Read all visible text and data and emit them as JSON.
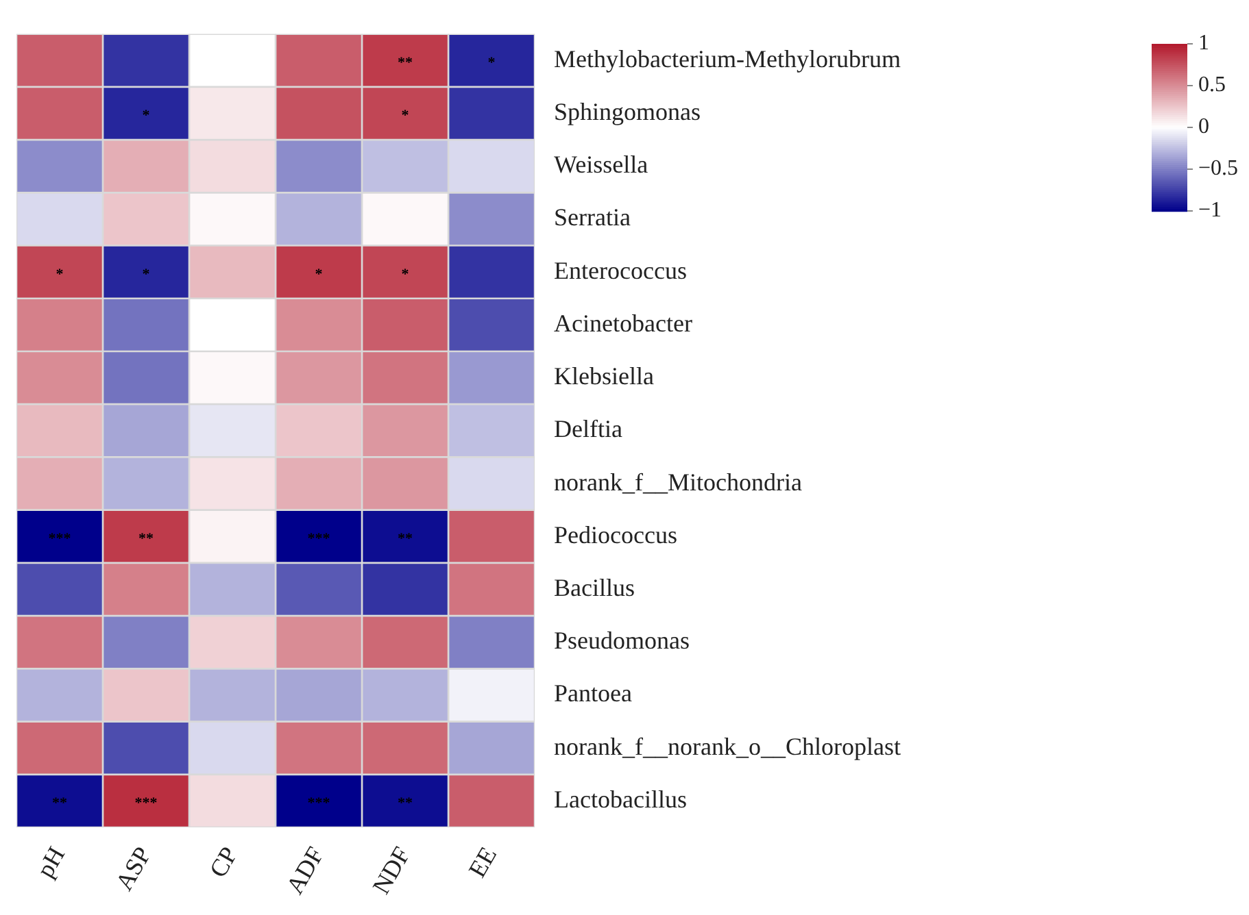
{
  "chart_data": {
    "type": "heatmap",
    "categories": [
      "pH",
      "ASP",
      "CP",
      "ADF",
      "NDF",
      "EE"
    ],
    "y_categories": [
      "Methylobacterium-Methylorubrum",
      "Sphingomonas",
      "Weissella",
      "Serratia",
      "Enterococcus",
      "Acinetobacter",
      "Klebsiella",
      "Delftia",
      "norank_f__Mitochondria",
      "Pediococcus",
      "Bacillus",
      "Pseudomonas",
      "Pantoea",
      "norank_f__norank_o__Chloroplast",
      "Lactobacillus"
    ],
    "cells": [
      [
        0.7,
        -0.8,
        0,
        0.7,
        0.85,
        -0.85
      ],
      [
        0.7,
        -0.85,
        0.1,
        0.75,
        0.8,
        -0.8
      ],
      [
        -0.45,
        0.35,
        0.15,
        -0.45,
        -0.25,
        -0.15
      ],
      [
        -0.15,
        0.25,
        0.03,
        -0.3,
        0.03,
        -0.45
      ],
      [
        0.8,
        -0.85,
        0.3,
        0.85,
        0.8,
        -0.8
      ],
      [
        0.55,
        -0.55,
        0,
        0.5,
        0.7,
        -0.7
      ],
      [
        0.5,
        -0.55,
        0.03,
        0.45,
        0.6,
        -0.4
      ],
      [
        0.3,
        -0.35,
        -0.1,
        0.25,
        0.45,
        -0.25
      ],
      [
        0.35,
        -0.3,
        0.12,
        0.35,
        0.45,
        -0.15
      ],
      [
        -1,
        0.85,
        0.05,
        -1,
        -0.95,
        0.7
      ],
      [
        -0.7,
        0.55,
        -0.3,
        -0.65,
        -0.8,
        0.6
      ],
      [
        0.6,
        -0.5,
        0.2,
        0.5,
        0.65,
        -0.5
      ],
      [
        -0.3,
        0.25,
        -0.3,
        -0.35,
        -0.3,
        -0.05
      ],
      [
        0.65,
        -0.7,
        -0.15,
        0.6,
        0.65,
        -0.35
      ],
      [
        -0.95,
        0.9,
        0.15,
        -1,
        -0.95,
        0.7
      ]
    ],
    "cell_labels": [
      [
        null,
        null,
        null,
        null,
        "**",
        "*"
      ],
      [
        null,
        "*",
        null,
        null,
        "*",
        null
      ],
      [
        null,
        null,
        null,
        null,
        null,
        null
      ],
      [
        null,
        null,
        null,
        null,
        null,
        null
      ],
      [
        "*",
        "*",
        null,
        "*",
        "*",
        null
      ],
      [
        null,
        null,
        null,
        null,
        null,
        null
      ],
      [
        null,
        null,
        null,
        null,
        null,
        null
      ],
      [
        null,
        null,
        null,
        null,
        null,
        null
      ],
      [
        null,
        null,
        null,
        null,
        null,
        null
      ],
      [
        "***",
        "**",
        null,
        "***",
        "**",
        null
      ],
      [
        null,
        null,
        null,
        null,
        null,
        null
      ],
      [
        null,
        null,
        null,
        null,
        null,
        null
      ],
      [
        null,
        null,
        null,
        null,
        null,
        null
      ],
      [
        null,
        null,
        null,
        null,
        null,
        null
      ],
      [
        "**",
        "***",
        null,
        "***",
        "**",
        null
      ]
    ],
    "clim": [
      -1,
      1
    ],
    "cticks": [
      {
        "value": 1,
        "label": "1"
      },
      {
        "value": 0.5,
        "label": "0.5"
      },
      {
        "value": 0,
        "label": "0"
      },
      {
        "value": -0.5,
        "label": "−0.5"
      },
      {
        "value": -1,
        "label": "−1"
      }
    ]
  }
}
